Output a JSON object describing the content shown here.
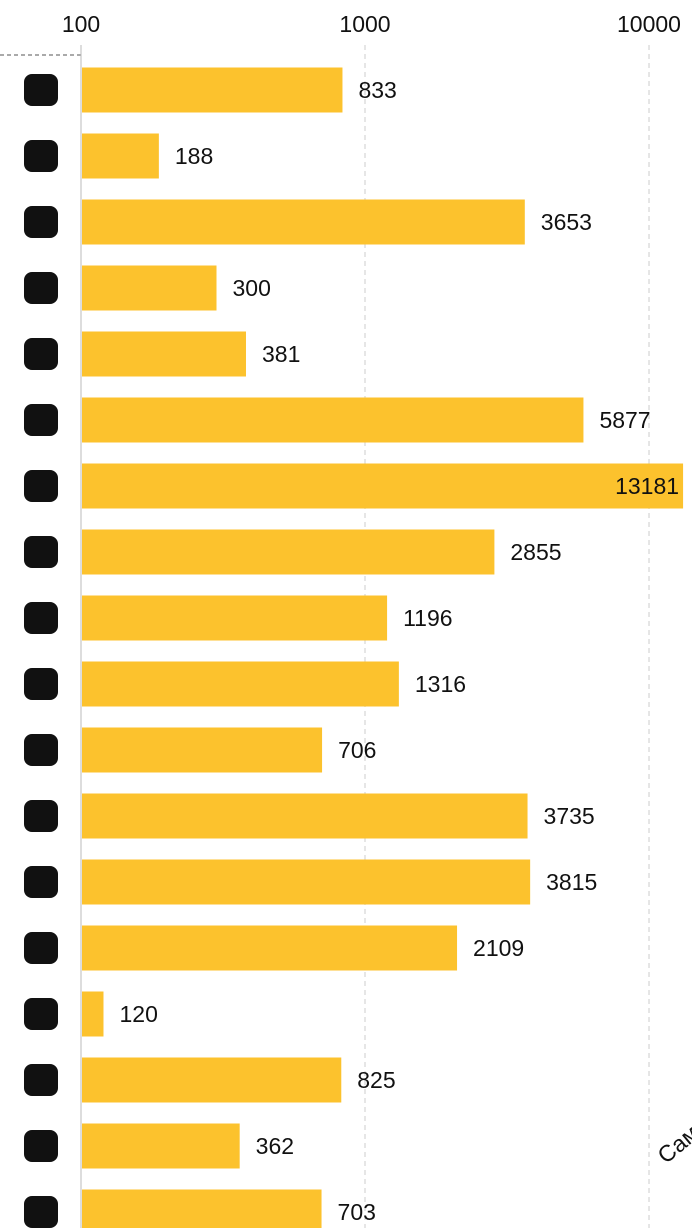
{
  "chart_data": {
    "type": "bar",
    "orientation": "horizontal",
    "xscale": "log",
    "categories": [
      null,
      null,
      null,
      null,
      null,
      null,
      null,
      null,
      null,
      null,
      null,
      null,
      null,
      null,
      null,
      null,
      null,
      null
    ],
    "values": [
      833,
      188,
      3653,
      300,
      381,
      5877,
      13181,
      2855,
      1196,
      1316,
      706,
      3735,
      3815,
      2109,
      120,
      825,
      362,
      703
    ],
    "color": "#fcc22d",
    "xlim": [
      100,
      14170
    ],
    "xticks": [
      100,
      1000,
      10000
    ],
    "grid": true,
    "annotation": "Сам"
  }
}
